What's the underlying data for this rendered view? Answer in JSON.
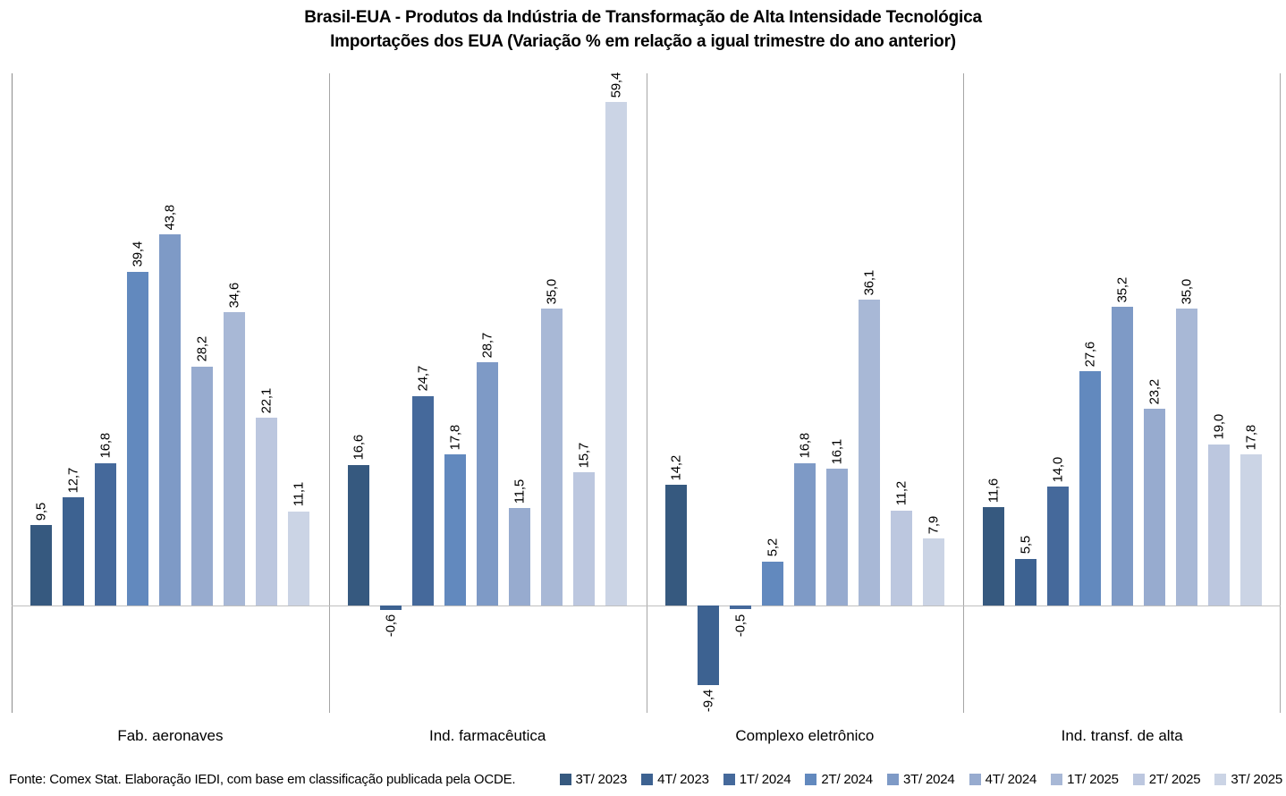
{
  "title": {
    "line1": "Brasil-EUA - Produtos da Indústria de Transformação de Alta Intensidade Tecnológica",
    "line2": "Importações dos EUA (Variação % em relação a igual trimestre do ano anterior)"
  },
  "source_note": "Fonte: Comex Stat. Elaboração IEDI, com base em classificação publicada pela OCDE.",
  "colors": {
    "axis_line": "#8c8c8c",
    "separator_line": "#a6a6a6",
    "zero_line": "#bfbfbf",
    "text": "#000000"
  },
  "chart_data": {
    "type": "bar",
    "title": "Brasil-EUA - Produtos da Indústria de Transformação de Alta Intensidade Tecnológica — Importações dos EUA (Variação % em relação a igual trimestre do ano anterior)",
    "categories": [
      "Fab. aeronaves",
      "Ind. farmacêutica",
      "Complexo eletrônico",
      "Ind. transf. de alta"
    ],
    "series": [
      {
        "name": "3T/ 2023",
        "color": "#36597f",
        "values": [
          9.5,
          16.6,
          14.2,
          11.6
        ]
      },
      {
        "name": "4T/ 2023",
        "color": "#3d6291",
        "values": [
          12.7,
          -0.6,
          -9.4,
          5.5
        ]
      },
      {
        "name": "1T/ 2024",
        "color": "#45699b",
        "values": [
          16.8,
          24.7,
          -0.5,
          14.0
        ]
      },
      {
        "name": "2T/ 2024",
        "color": "#6289be",
        "values": [
          39.4,
          17.8,
          5.2,
          27.6
        ]
      },
      {
        "name": "3T/ 2024",
        "color": "#7e9ac6",
        "values": [
          43.8,
          28.7,
          16.8,
          35.2
        ]
      },
      {
        "name": "4T/ 2024",
        "color": "#97abcf",
        "values": [
          28.2,
          11.5,
          16.1,
          23.2
        ]
      },
      {
        "name": "1T/ 2025",
        "color": "#a8b8d6",
        "values": [
          34.6,
          35.0,
          36.1,
          35.0
        ]
      },
      {
        "name": "2T/ 2025",
        "color": "#bcc7df",
        "values": [
          22.1,
          15.7,
          11.2,
          19.0
        ]
      },
      {
        "name": "3T/ 2025",
        "color": "#cbd4e5",
        "values": [
          11.1,
          59.4,
          7.9,
          17.8
        ]
      }
    ],
    "value_labels": true,
    "value_label_decimals": 1,
    "decimal_separator": ",",
    "ylabel": "",
    "xlabel": "",
    "ylim": [
      -12.7,
      62.8
    ],
    "grid": "vertical-category-separators",
    "legend_position": "bottom-right"
  }
}
